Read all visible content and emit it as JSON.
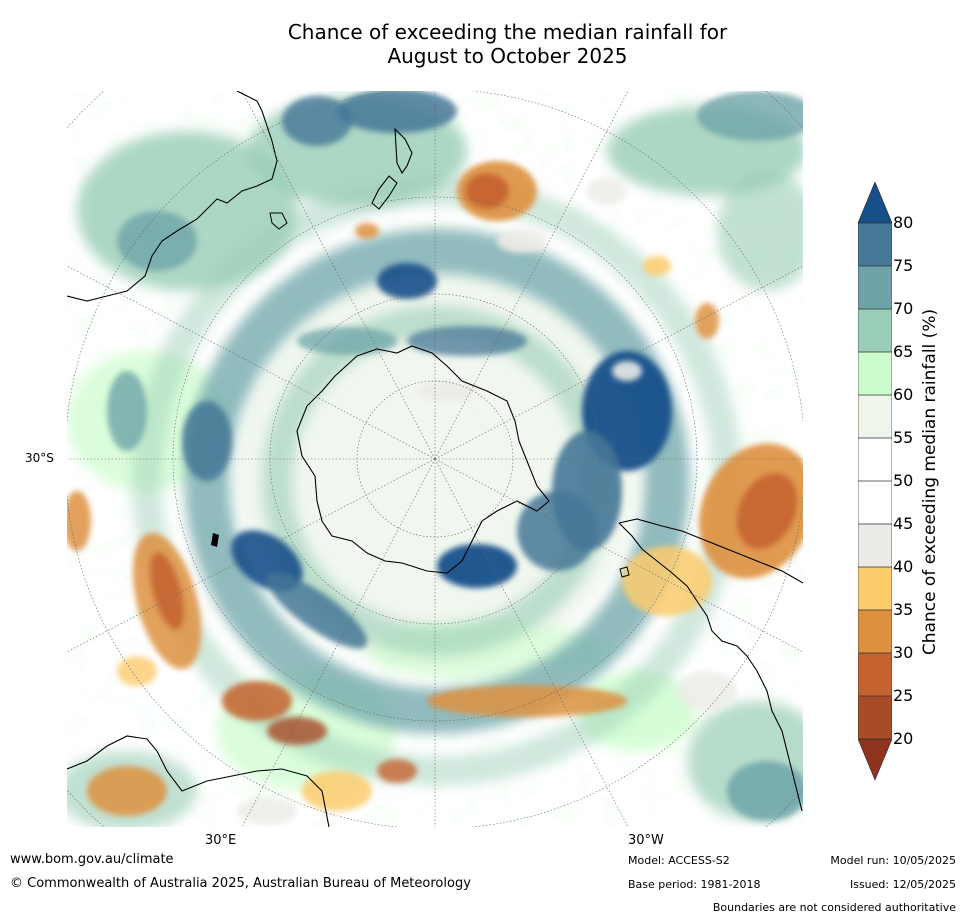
{
  "title": {
    "line1": "Chance of exceeding the median rainfall for",
    "line2": "August to October 2025"
  },
  "map": {
    "lat_label": "30°S",
    "lon_labels": [
      "30°E",
      "30°W"
    ]
  },
  "legend": {
    "label": "Chance of exceeding median rainfall (%)",
    "ticks": [
      "80",
      "75",
      "70",
      "65",
      "60",
      "55",
      "50",
      "45",
      "40",
      "35",
      "30",
      "25",
      "20"
    ],
    "bins": [
      {
        "range": "above 80",
        "color": "#164f8a"
      },
      {
        "range": "75-80",
        "color": "#457797"
      },
      {
        "range": "70-75",
        "color": "#6ea4a8"
      },
      {
        "range": "65-70",
        "color": "#99cdb6"
      },
      {
        "range": "60-65",
        "color": "#ccfccc"
      },
      {
        "range": "55-60",
        "color": "#eef6ec"
      },
      {
        "range": "50-55",
        "color": "#ffffff"
      },
      {
        "range": "45-50",
        "color": "#ffffff"
      },
      {
        "range": "40-45",
        "color": "#ecebe7"
      },
      {
        "range": "35-40",
        "color": "#fccb6c"
      },
      {
        "range": "30-35",
        "color": "#dd903f"
      },
      {
        "range": "25-30",
        "color": "#c46230"
      },
      {
        "range": "20-25",
        "color": "#a84b27"
      },
      {
        "range": "below 20",
        "color": "#8f3320"
      }
    ]
  },
  "footer": {
    "website": "www.bom.gov.au/climate",
    "copyright": "© Commonwealth of Australia 2025, Australian Bureau of Meteorology",
    "model": "Model: ACCESS-S2",
    "base_period": "Base period: 1981-2018",
    "model_run": "Model run: 10/05/2025",
    "issued": "Issued: 12/05/2025",
    "disclaimer": "Boundaries are not considered authoritative"
  }
}
